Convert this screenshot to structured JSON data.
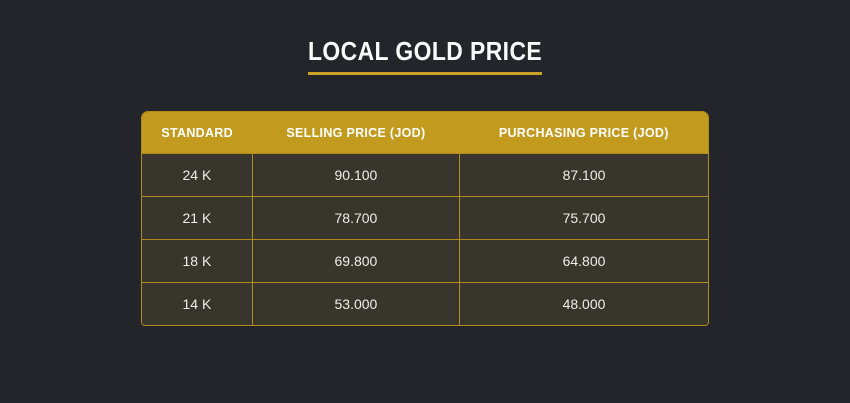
{
  "title": {
    "text": "LOCAL GOLD PRICE"
  },
  "table": {
    "header": {
      "columns": [
        "STANDARD",
        "SELLING PRICE (JOD)",
        "PURCHASING PRICE (JOD)"
      ]
    },
    "rows": [
      {
        "standard": "24 K",
        "selling": "90.100",
        "purchasing": "87.100"
      },
      {
        "standard": "21 K",
        "selling": "78.700",
        "purchasing": "75.700"
      },
      {
        "standard": "18 K",
        "selling": "69.800",
        "purchasing": "64.800"
      },
      {
        "standard": "14 K",
        "selling": "53.000",
        "purchasing": "48.000"
      }
    ]
  },
  "colors": {
    "background": "#23252a",
    "gold": "#c29b1e",
    "gold-underline": "#c9a227",
    "cell-background": "#38352c",
    "cell-border": "#b08c1d",
    "header-text": "#ffffff",
    "cell-text": "#f0ede8",
    "title-text": "#fafafa"
  }
}
